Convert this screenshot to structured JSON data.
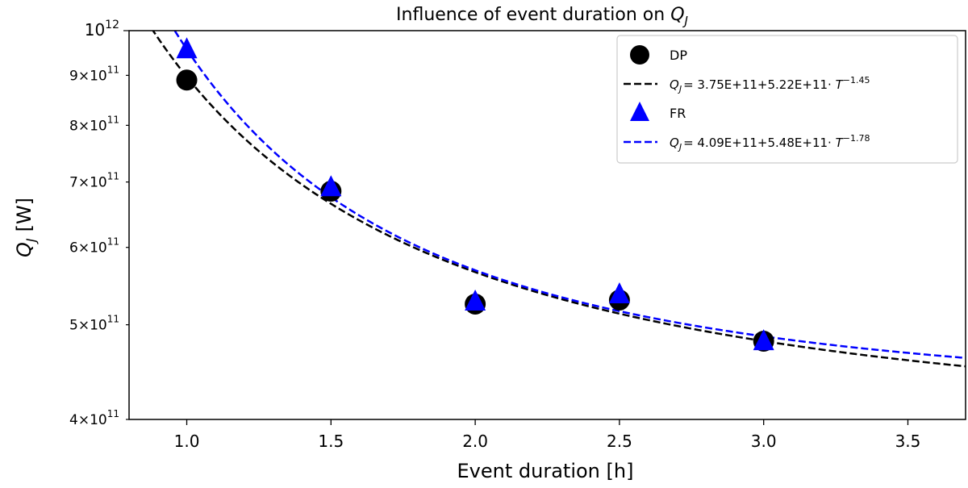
{
  "chart_data": {
    "type": "scatter",
    "title": "Influence of event duration on",
    "title_symbol": "Q",
    "title_subscript": "J",
    "xlabel": "Event duration [h]",
    "ylabel": "Q",
    "ylabel_subscript": "J",
    "ylabel_unit": "[W]",
    "xlim": [
      0.8,
      3.7
    ],
    "ylim": [
      400000000000,
      1000000000000
    ],
    "yscale": "log",
    "x_ticks": [
      {
        "value": 1.0,
        "label": "1.0"
      },
      {
        "value": 1.5,
        "label": "1.5"
      },
      {
        "value": 2.0,
        "label": "2.0"
      },
      {
        "value": 2.5,
        "label": "2.5"
      },
      {
        "value": 3.0,
        "label": "3.0"
      },
      {
        "value": 3.5,
        "label": "3.5"
      }
    ],
    "y_ticks": [
      {
        "value": 400000000000,
        "mantissa": "4",
        "base": "10",
        "exp": "11"
      },
      {
        "value": 500000000000,
        "mantissa": "5",
        "base": "10",
        "exp": "11"
      },
      {
        "value": 600000000000,
        "mantissa": "6",
        "base": "10",
        "exp": "11"
      },
      {
        "value": 700000000000,
        "mantissa": "7",
        "base": "10",
        "exp": "11"
      },
      {
        "value": 800000000000,
        "mantissa": "8",
        "base": "10",
        "exp": "11"
      },
      {
        "value": 900000000000,
        "mantissa": "9",
        "base": "10",
        "exp": "11"
      },
      {
        "value": 1000000000000,
        "mantissa": "",
        "base": "10",
        "exp": "12"
      }
    ],
    "series": [
      {
        "name": "DP",
        "marker": "circle",
        "color": "#000000",
        "x": [
          1.0,
          1.5,
          2.0,
          2.5,
          3.0
        ],
        "y": [
          890000000000,
          685000000000,
          525000000000,
          530000000000,
          481000000000
        ],
        "fit": {
          "a": 375000000000,
          "b": 522000000000,
          "c": -1.45,
          "color": "#000000",
          "label_prefix": "= 3.75E+11+5.22E+11·",
          "label_exp": "−1.45"
        }
      },
      {
        "name": "FR",
        "marker": "triangle",
        "color": "#0000ff",
        "x": [
          1.0,
          1.5,
          2.0,
          2.5,
          3.0
        ],
        "y": [
          955000000000,
          690000000000,
          527000000000,
          536000000000,
          480000000000
        ],
        "fit": {
          "a": 409000000000,
          "b": 548000000000,
          "c": -1.78,
          "color": "#0000ff",
          "label_prefix": "= 4.09E+11+5.48E+11·",
          "label_exp": "−1.78"
        }
      }
    ],
    "fit_symbol": "Q",
    "fit_subscript": "J",
    "fit_variable": "T",
    "legend_position": "top-right"
  }
}
